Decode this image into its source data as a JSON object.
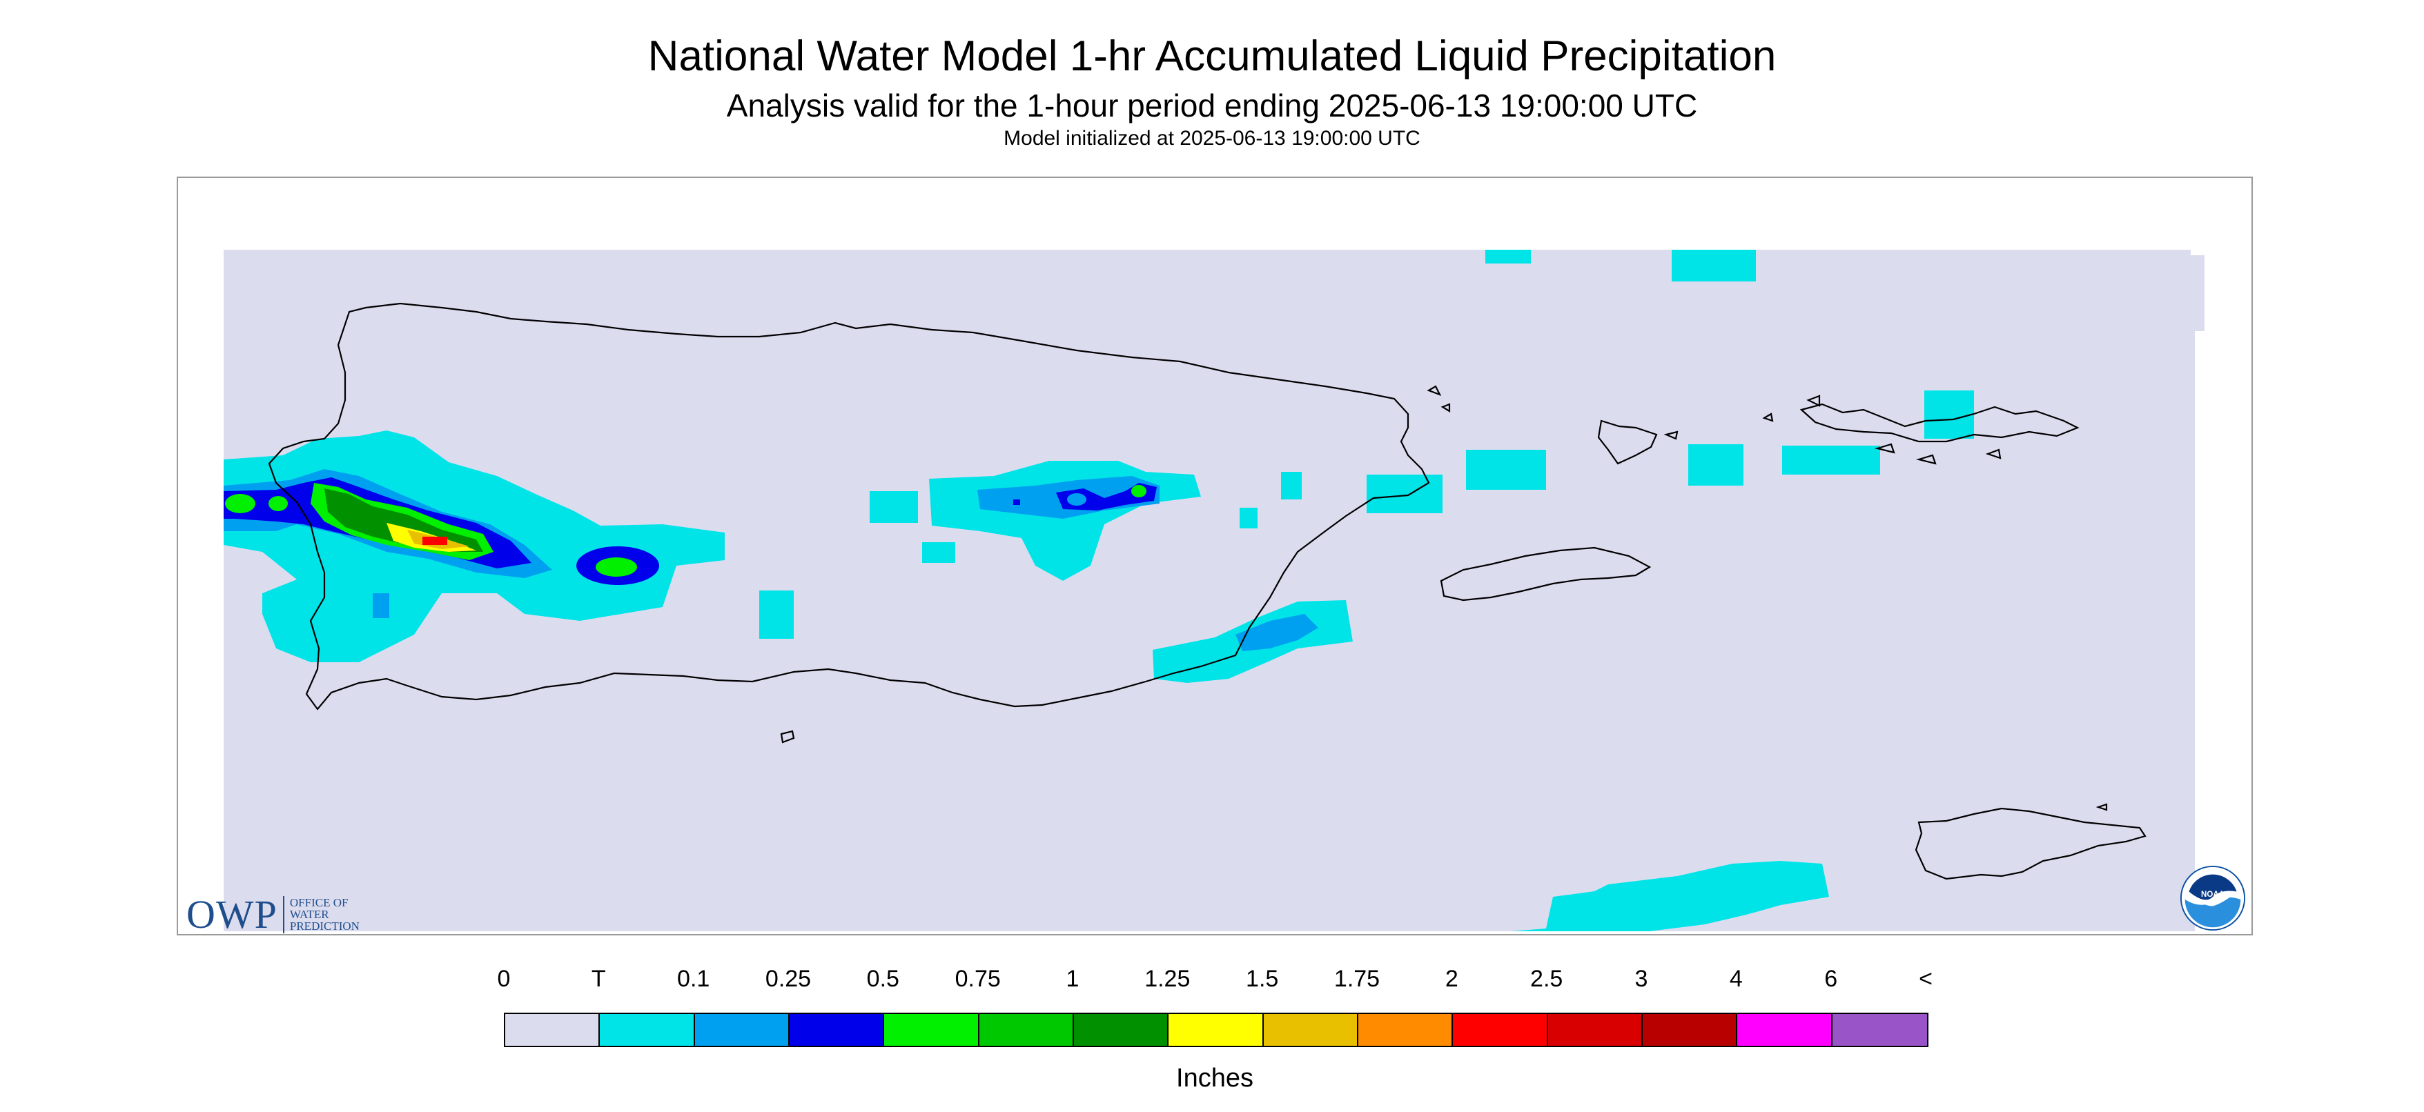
{
  "title": "National Water Model 1-hr Accumulated Liquid Precipitation",
  "subtitle": "Analysis valid for the 1-hour period ending 2025-06-13 19:00:00 UTC",
  "init_line": "Model initialized at 2025-06-13 19:00:00 UTC",
  "owp_logo": {
    "letters": "OWP",
    "lines": [
      "OFFICE OF",
      "WATER",
      "PREDICTION"
    ]
  },
  "noaa_logo": {
    "icon": "noaa-logo-icon",
    "text": "NOAA"
  },
  "legend": {
    "labels": [
      "0",
      "T",
      "0.1",
      "0.25",
      "0.5",
      "0.75",
      "1",
      "1.25",
      "1.5",
      "1.75",
      "2",
      "2.5",
      "3",
      "4",
      "6",
      "<"
    ],
    "colors": [
      "#dcdcef",
      "#00e4e8",
      "#00a0f0",
      "#0000ea",
      "#00f000",
      "#00c800",
      "#009000",
      "#ffff00",
      "#e8c000",
      "#ff8c00",
      "#ff0000",
      "#d80000",
      "#b80000",
      "#ff00ff",
      "#9955c8"
    ],
    "unit": "Inches"
  },
  "colors": {
    "background_precip": "#dcdcef",
    "trace": "#00e4e8",
    "coast": "#000000",
    "owp_blue": "#1f4e8c",
    "noaa_blue": "#0a4fa3"
  }
}
